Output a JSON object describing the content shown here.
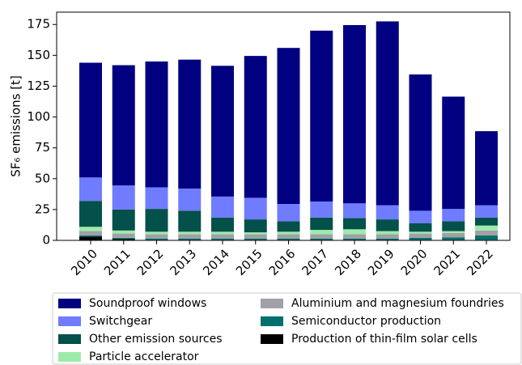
{
  "chart_data": {
    "type": "stacked-bar",
    "y_label": "SF₆ emissions [t]",
    "categories": [
      "2010",
      "2011",
      "2012",
      "2013",
      "2014",
      "2015",
      "2016",
      "2017",
      "2018",
      "2019",
      "2020",
      "2021",
      "2022"
    ],
    "series": [
      {
        "name": "Production of thin-film solar cells",
        "color": "#000000",
        "values": [
          3,
          1,
          0.5,
          0.5,
          0.5,
          0.5,
          0.5,
          0.5,
          0.5,
          0.5,
          0.5,
          0.5,
          0.5
        ]
      },
      {
        "name": "Semiconductor production",
        "color": "#00706c",
        "values": [
          1,
          1,
          1,
          1,
          1,
          1,
          1,
          1,
          1,
          1,
          1.5,
          2,
          3.5
        ]
      },
      {
        "name": "Aluminium and magnesium foundries",
        "color": "#a0a0a6",
        "values": [
          3.5,
          3.5,
          3.5,
          3.5,
          3.5,
          3.5,
          3.5,
          3.5,
          3.5,
          3.5,
          3.5,
          3.5,
          4
        ]
      },
      {
        "name": "Particle accelerator",
        "color": "#9eeaaa",
        "values": [
          3.5,
          2.5,
          2,
          2,
          2,
          1.5,
          2,
          3.5,
          4,
          2.5,
          1.5,
          1.5,
          4
        ]
      },
      {
        "name": "Other emission sources",
        "color": "#04504a",
        "values": [
          21,
          17,
          18.5,
          17,
          11.5,
          10.5,
          8.5,
          10,
          9,
          9.5,
          7,
          8,
          6.5
        ]
      },
      {
        "name": "Switchgear",
        "color": "#6f7cff",
        "values": [
          19,
          19.5,
          17.5,
          18,
          17,
          17.5,
          14,
          13,
          12,
          11.5,
          10,
          10,
          10
        ]
      },
      {
        "name": "Soundproof windows",
        "color": "#000080",
        "values": [
          93,
          97.5,
          102,
          104.5,
          106,
          115,
          126.5,
          138.5,
          144.5,
          149,
          110.5,
          91,
          60
        ]
      }
    ],
    "ylim": [
      0,
      185
    ],
    "yticks": [
      0,
      25,
      50,
      75,
      100,
      125,
      150,
      175
    ]
  }
}
